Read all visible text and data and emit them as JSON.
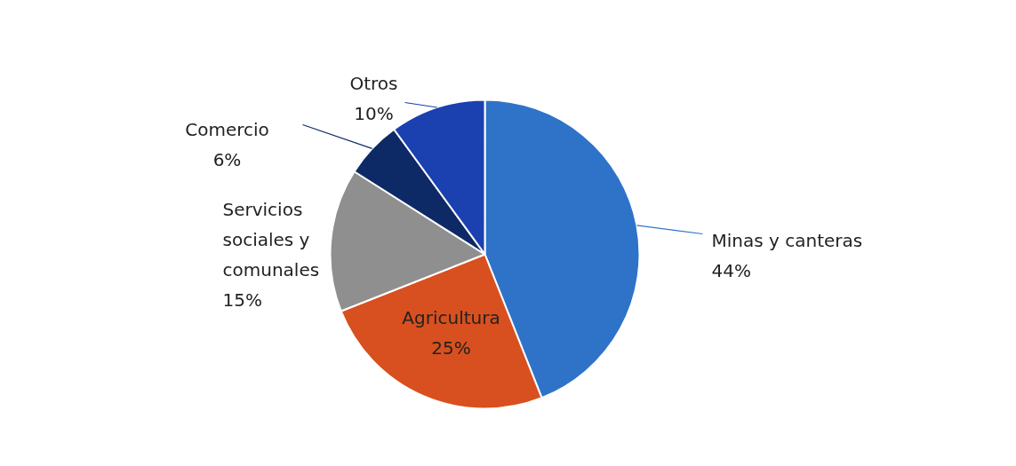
{
  "chart_data": {
    "type": "pie",
    "categories": [
      "Minas y canteras",
      "Agricultura",
      "Servicios sociales y comunales",
      "Comercio",
      "Otros"
    ],
    "values": [
      44,
      25,
      15,
      6,
      10
    ],
    "colors": [
      "#2f73c9",
      "#d8501f",
      "#8f8f8f",
      "#0e2a66",
      "#1b40b0"
    ],
    "value_labels": [
      "44%",
      "25%",
      "15%",
      "6%",
      "10%"
    ]
  }
}
